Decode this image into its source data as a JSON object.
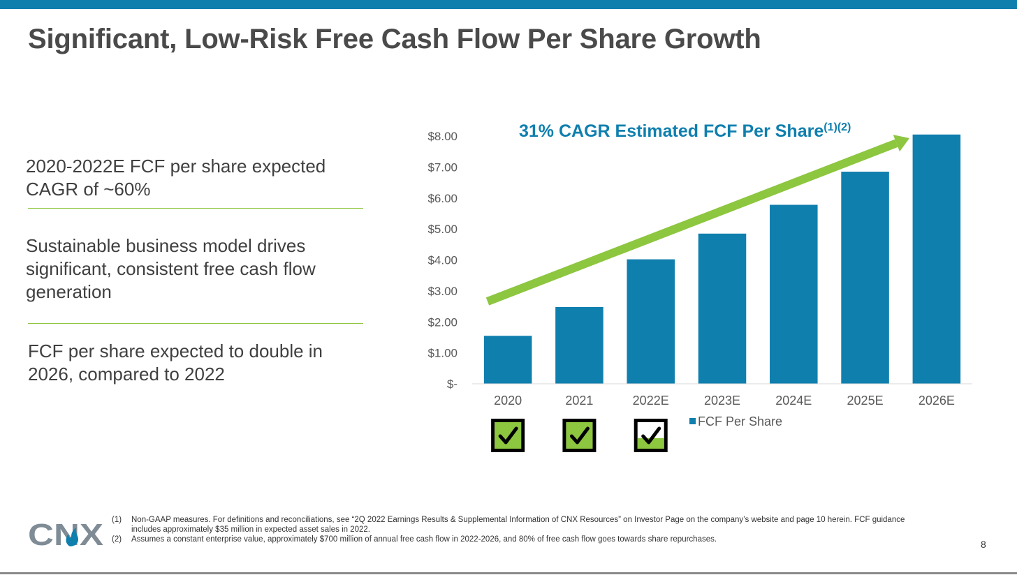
{
  "slide": {
    "title": "Significant, Low-Risk Free Cash Flow Per Share Growth",
    "page_number": "8"
  },
  "bullets": [
    "2020-2022E FCF per share expected CAGR of ~60%",
    "Sustainable business model drives significant, consistent free cash flow generation",
    "FCF per share expected to double in 2026, compared to 2022"
  ],
  "chart_data": {
    "type": "bar",
    "title": "31% CAGR Estimated FCF Per Share",
    "title_superscript": "(1)(2)",
    "categories": [
      "2020",
      "2021",
      "2022E",
      "2023E",
      "2024E",
      "2025E",
      "2026E"
    ],
    "series": [
      {
        "name": "FCF Per Share",
        "values": [
          1.55,
          2.48,
          4.02,
          4.85,
          5.78,
          6.85,
          8.05
        ]
      }
    ],
    "ylim": [
      0,
      8
    ],
    "yticks": [
      {
        "value": 0,
        "label": "$-"
      },
      {
        "value": 1,
        "label": "$1.00"
      },
      {
        "value": 2,
        "label": "$2.00"
      },
      {
        "value": 3,
        "label": "$3.00"
      },
      {
        "value": 4,
        "label": "$4.00"
      },
      {
        "value": 5,
        "label": "$5.00"
      },
      {
        "value": 6,
        "label": "$6.00"
      },
      {
        "value": 7,
        "label": "$7.00"
      },
      {
        "value": 8,
        "label": "$8.00"
      }
    ],
    "xlabel": "",
    "ylabel": "",
    "grid": false,
    "legend_position": "bottom-center",
    "checkmarks": [
      {
        "category": "2020",
        "fill": 1.0
      },
      {
        "category": "2021",
        "fill": 1.0
      },
      {
        "category": "2022E",
        "fill": 0.4
      }
    ],
    "colors": {
      "bar": "#0f7fae",
      "arrow": "#8dc63f",
      "title": "#0f7fae",
      "check_fill": "#8dc63f"
    }
  },
  "footnotes": [
    {
      "num": "(1)",
      "text": "Non-GAAP measures. For definitions and reconciliations, see “2Q 2022 Earnings Results & Supplemental Information of CNX Resources” on Investor Page on the company’s website and page 10 herein. FCF guidance includes approximately $35 million in expected asset sales in 2022."
    },
    {
      "num": "(2)",
      "text": "Assumes a constant enterprise value, approximately $700 million of annual free cash flow in 2022-2026, and 80% of free cash flow goes towards share repurchases."
    }
  ],
  "logo": {
    "text": "CNX",
    "icon": "flame-icon",
    "color": "#7f8c96",
    "flame_color": "#0f7fae"
  }
}
